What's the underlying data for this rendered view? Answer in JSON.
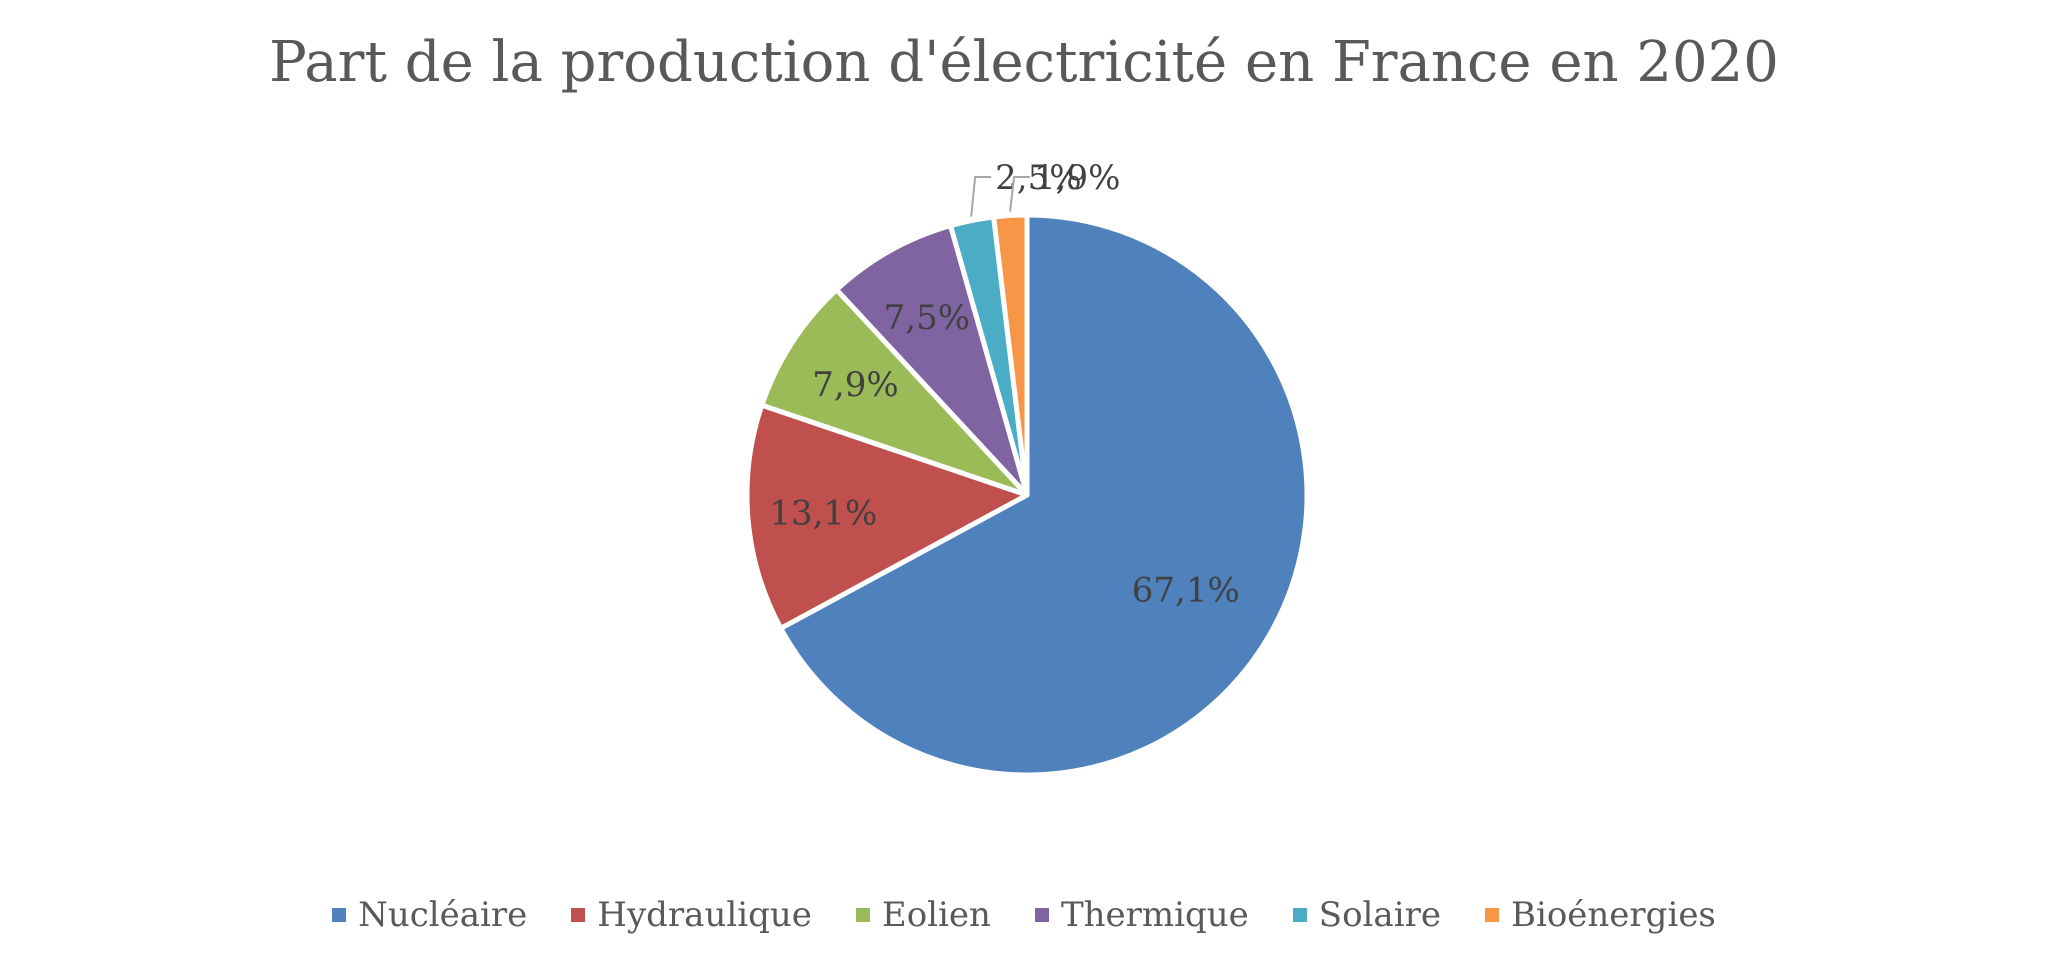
{
  "chart_data": {
    "type": "pie",
    "title": "Part de la production d'électricité en France en 2020",
    "categories": [
      "Nucléaire",
      "Hydraulique",
      "Eolien",
      "Thermique",
      "Solaire",
      "Bioénergies"
    ],
    "values": [
      67.1,
      13.1,
      7.9,
      7.5,
      2.5,
      1.9
    ],
    "data_labels": [
      "67,1%",
      "13,1%",
      "7,9%",
      "7,5%",
      "2,5%",
      "1,9%"
    ],
    "colors": [
      "#4F81BD",
      "#C0504D",
      "#9BBB59",
      "#8064A2",
      "#4BACC6",
      "#F79646"
    ],
    "legend_position": "bottom"
  }
}
